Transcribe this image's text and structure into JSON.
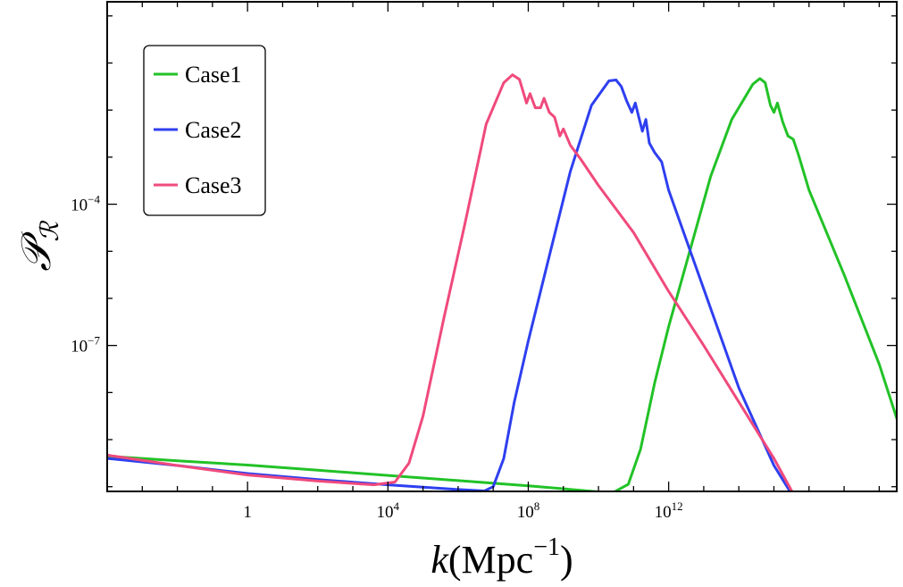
{
  "chart_data": {
    "type": "line",
    "title": "",
    "xlabel": "k(Mpc⁻¹)",
    "xlabel_parts": {
      "var": "k",
      "open": "(Mpc",
      "exp": "−1",
      "close": ")"
    },
    "ylabel": "𝒫𝓇",
    "ylabel_parts": {
      "main": "𝒫",
      "sub": "ℛ"
    },
    "x_scale": "log10",
    "y_scale": "log10",
    "xlim": [
      -4,
      18.5
    ],
    "ylim": [
      -10.1,
      0.3
    ],
    "x_ticks": [
      {
        "exp": 0,
        "base": "1",
        "sup": ""
      },
      {
        "exp": 4,
        "base": "10",
        "sup": "4"
      },
      {
        "exp": 8,
        "base": "10",
        "sup": "8"
      },
      {
        "exp": 12,
        "base": "10",
        "sup": "12"
      }
    ],
    "y_ticks": [
      {
        "exp": -4,
        "base": "10",
        "sup": "−4"
      },
      {
        "exp": -7,
        "base": "10",
        "sup": "−7"
      }
    ],
    "legend": {
      "position": "top-left",
      "entries": [
        "Case1",
        "Case2",
        "Case3"
      ]
    },
    "series": [
      {
        "name": "Case1",
        "color": "#22c227",
        "points": [
          [
            -4,
            -9.35
          ],
          [
            -2,
            -9.45
          ],
          [
            0,
            -9.54
          ],
          [
            2,
            -9.65
          ],
          [
            4,
            -9.76
          ],
          [
            6,
            -9.87
          ],
          [
            8,
            -9.98
          ],
          [
            10,
            -10.11
          ],
          [
            10.4,
            -10.13
          ],
          [
            10.85,
            -9.95
          ],
          [
            11.2,
            -9.2
          ],
          [
            11.6,
            -7.8
          ],
          [
            12.0,
            -6.6
          ],
          [
            12.6,
            -5.0
          ],
          [
            13.2,
            -3.4
          ],
          [
            13.8,
            -2.2
          ],
          [
            14.4,
            -1.45
          ],
          [
            14.6,
            -1.33
          ],
          [
            14.75,
            -1.42
          ],
          [
            14.9,
            -1.9
          ],
          [
            15.0,
            -2.05
          ],
          [
            15.1,
            -1.85
          ],
          [
            15.25,
            -2.25
          ],
          [
            15.4,
            -2.55
          ],
          [
            15.55,
            -2.62
          ],
          [
            15.7,
            -2.95
          ],
          [
            16.0,
            -3.7
          ],
          [
            17.0,
            -5.5
          ],
          [
            18.0,
            -7.4
          ],
          [
            18.5,
            -8.55
          ]
        ]
      },
      {
        "name": "Case2",
        "color": "#2e3ff0",
        "points": [
          [
            -4,
            -9.4
          ],
          [
            -2,
            -9.55
          ],
          [
            0,
            -9.72
          ],
          [
            2,
            -9.85
          ],
          [
            4,
            -9.96
          ],
          [
            6,
            -10.06
          ],
          [
            6.75,
            -10.09
          ],
          [
            7.0,
            -10.0
          ],
          [
            7.3,
            -9.4
          ],
          [
            7.6,
            -8.2
          ],
          [
            8.0,
            -6.9
          ],
          [
            8.6,
            -5.1
          ],
          [
            9.2,
            -3.3
          ],
          [
            9.8,
            -1.9
          ],
          [
            10.3,
            -1.38
          ],
          [
            10.5,
            -1.36
          ],
          [
            10.65,
            -1.5
          ],
          [
            10.8,
            -1.8
          ],
          [
            10.95,
            -2.05
          ],
          [
            11.05,
            -1.85
          ],
          [
            11.15,
            -2.15
          ],
          [
            11.25,
            -2.45
          ],
          [
            11.35,
            -2.2
          ],
          [
            11.45,
            -2.7
          ],
          [
            11.6,
            -2.9
          ],
          [
            11.8,
            -3.1
          ],
          [
            12.0,
            -3.7
          ],
          [
            13.0,
            -5.8
          ],
          [
            14.0,
            -7.9
          ],
          [
            15.0,
            -9.55
          ],
          [
            15.5,
            -10.15
          ]
        ]
      },
      {
        "name": "Case3",
        "color": "#f04a7c",
        "points": [
          [
            -4,
            -9.33
          ],
          [
            -2,
            -9.55
          ],
          [
            0,
            -9.75
          ],
          [
            2,
            -9.88
          ],
          [
            3.6,
            -9.96
          ],
          [
            4.2,
            -9.9
          ],
          [
            4.6,
            -9.5
          ],
          [
            5.0,
            -8.5
          ],
          [
            5.6,
            -6.4
          ],
          [
            6.2,
            -4.4
          ],
          [
            6.8,
            -2.3
          ],
          [
            7.3,
            -1.42
          ],
          [
            7.55,
            -1.25
          ],
          [
            7.75,
            -1.35
          ],
          [
            7.95,
            -1.85
          ],
          [
            8.05,
            -1.65
          ],
          [
            8.2,
            -1.95
          ],
          [
            8.35,
            -1.95
          ],
          [
            8.45,
            -1.75
          ],
          [
            8.6,
            -2.05
          ],
          [
            8.75,
            -2.15
          ],
          [
            8.9,
            -2.55
          ],
          [
            9.0,
            -2.4
          ],
          [
            9.2,
            -2.75
          ],
          [
            9.5,
            -3.05
          ],
          [
            10.0,
            -3.6
          ],
          [
            11.0,
            -4.6
          ],
          [
            12.0,
            -5.85
          ],
          [
            13.0,
            -7.0
          ],
          [
            14.0,
            -8.2
          ],
          [
            15.0,
            -9.4
          ],
          [
            15.55,
            -10.15
          ]
        ]
      }
    ]
  }
}
